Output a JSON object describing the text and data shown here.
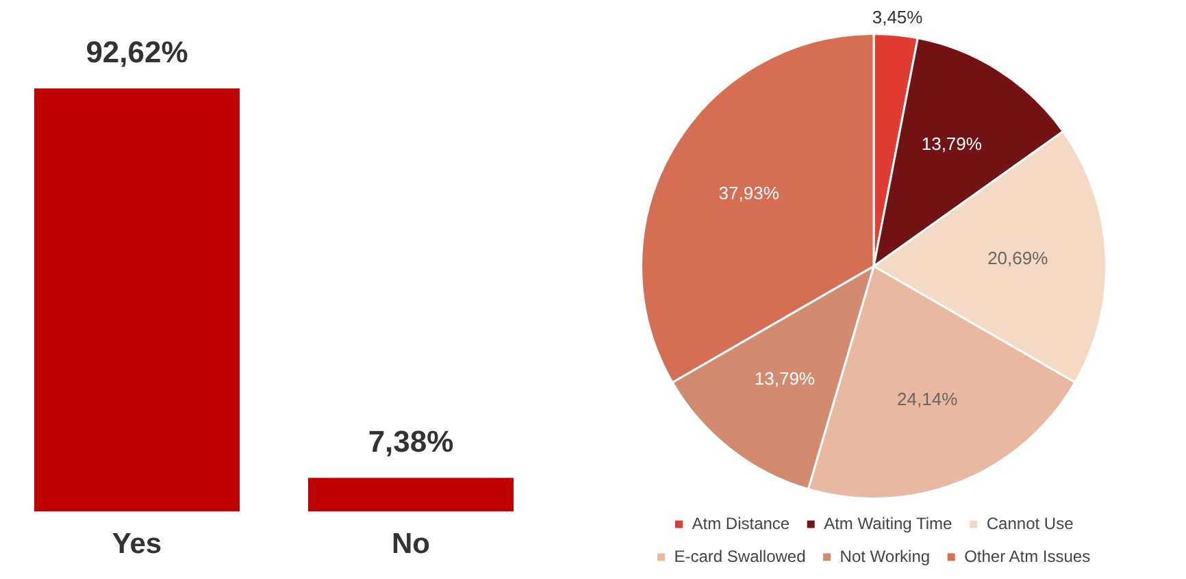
{
  "chart_data": [
    {
      "type": "bar",
      "categories": [
        "Yes",
        "No"
      ],
      "values": [
        92.62,
        7.38
      ],
      "color": "#c00000",
      "value_labels": [
        "92,62%",
        "7,38%"
      ],
      "tick_labels": "x",
      "grid": false,
      "legend": false
    },
    {
      "type": "pie",
      "categories": [
        "Atm Distance",
        "Atm Waiting Time",
        "Cannot Use",
        "E-card Swallowed",
        "Not Working",
        "Other Atm Issues"
      ],
      "values": [
        3.45,
        13.79,
        20.69,
        24.14,
        13.79,
        37.93
      ],
      "colors": [
        "#e03c31",
        "#731414",
        "#f4d9c4",
        "#e8b9a0",
        "#d38b70",
        "#d56e53"
      ],
      "value_labels": [
        "3,45%",
        "13,79%",
        "20,69%",
        "24,14%",
        "13,79%",
        "37,93%"
      ],
      "legend": "bottom"
    }
  ]
}
